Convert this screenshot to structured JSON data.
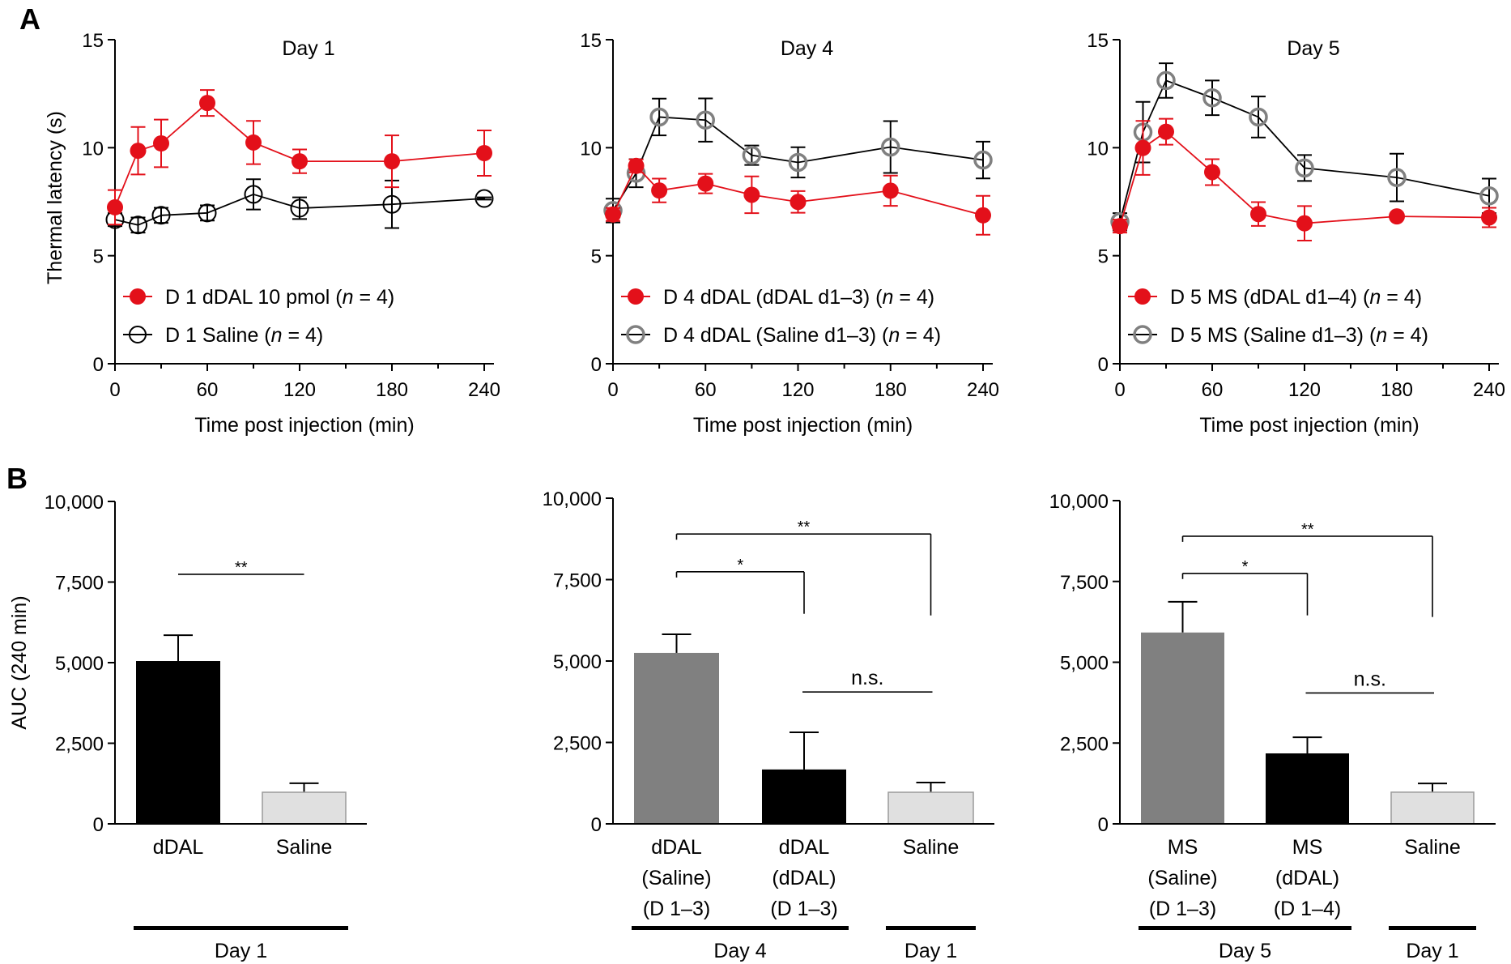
{
  "panel_labels": {
    "a": "A",
    "b": "B"
  },
  "colors": {
    "red": "#e3101a",
    "gray_marker": "#808080",
    "black": "#000000",
    "bar_gray": "#808080",
    "bar_black": "#000000",
    "bar_light": "#e0e0e0",
    "bar_light_edge": "#9a9a9a"
  },
  "chart_data": [
    {
      "type": "line",
      "panel": "A",
      "title": "Day 1",
      "xlabel": "Time post injection (min)",
      "ylabel": "Thermal latency (s)",
      "xlim": [
        0,
        240
      ],
      "ylim": [
        0,
        15
      ],
      "xticks": [
        0,
        60,
        120,
        180,
        240
      ],
      "xminor": [
        30,
        90,
        150,
        210
      ],
      "yticks": [
        0,
        5,
        10,
        15
      ],
      "legend_position": "bottom-left",
      "x": [
        0,
        15,
        30,
        60,
        90,
        120,
        180,
        240
      ],
      "series": [
        {
          "name": "D 1 dDAL 10 pmol",
          "n_label": "(n = 4)",
          "marker": "filled-circle",
          "color": "red",
          "values": [
            7.24,
            9.86,
            10.2,
            12.07,
            10.24,
            9.37,
            9.37,
            9.75
          ],
          "errors": [
            0.8,
            1.1,
            1.1,
            0.6,
            1.0,
            0.55,
            1.2,
            1.05
          ]
        },
        {
          "name": "D 1 Saline",
          "n_label": "(n = 4)",
          "marker": "open-circle-black",
          "color": "black",
          "values": [
            6.67,
            6.42,
            6.87,
            6.98,
            7.84,
            7.2,
            7.38,
            7.65
          ],
          "errors": [
            0.3,
            0.35,
            0.35,
            0.35,
            0.7,
            0.5,
            1.1,
            0.05
          ]
        }
      ]
    },
    {
      "type": "line",
      "panel": "A",
      "title": "Day 4",
      "xlabel": "Time post injection (min)",
      "ylabel": "",
      "xlim": [
        0,
        240
      ],
      "ylim": [
        0,
        15
      ],
      "xticks": [
        0,
        60,
        120,
        180,
        240
      ],
      "xminor": [
        30,
        90,
        150,
        210
      ],
      "yticks": [
        0,
        5,
        10,
        15
      ],
      "legend_position": "bottom-left",
      "x": [
        0,
        15,
        30,
        60,
        90,
        120,
        180,
        240
      ],
      "series": [
        {
          "name": "D 4 dDAL (dDAL d1–3)",
          "n_label": "(n = 4)",
          "marker": "filled-circle",
          "color": "red",
          "values": [
            6.91,
            9.16,
            8.02,
            8.34,
            7.82,
            7.49,
            8.01,
            6.87
          ],
          "errors": [
            0.3,
            0.3,
            0.55,
            0.45,
            0.85,
            0.5,
            0.7,
            0.9
          ]
        },
        {
          "name": "D 4 dDAL (Saline d1–3)",
          "n_label": "(n = 4)",
          "marker": "open-circle-gray",
          "color": "black",
          "values": [
            7.09,
            8.82,
            11.42,
            11.28,
            9.65,
            9.32,
            10.03,
            9.43
          ],
          "errors": [
            0.55,
            0.65,
            0.85,
            1.0,
            0.45,
            0.7,
            1.2,
            0.85
          ]
        }
      ]
    },
    {
      "type": "line",
      "panel": "A",
      "title": "Day 5",
      "xlabel": "Time post injection (min)",
      "ylabel": "",
      "xlim": [
        0,
        240
      ],
      "ylim": [
        0,
        15
      ],
      "xticks": [
        0,
        60,
        120,
        180,
        240
      ],
      "xminor": [
        30,
        90,
        150,
        210
      ],
      "yticks": [
        0,
        5,
        10,
        15
      ],
      "legend_position": "bottom-left",
      "x": [
        0,
        15,
        30,
        60,
        90,
        120,
        180,
        240
      ],
      "series": [
        {
          "name": "D 5 MS (dDAL d1–4)",
          "n_label": "(n = 4)",
          "marker": "filled-circle",
          "color": "red",
          "values": [
            6.37,
            9.99,
            10.74,
            8.87,
            6.93,
            6.5,
            6.82,
            6.77
          ],
          "errors": [
            0.3,
            1.25,
            0.6,
            0.6,
            0.55,
            0.8,
            0.1,
            0.45
          ]
        },
        {
          "name": "D 5 MS (Saline d1–3)",
          "n_label": "(n = 4)",
          "marker": "open-circle-gray",
          "color": "black",
          "values": [
            6.57,
            10.72,
            13.11,
            12.31,
            11.42,
            9.06,
            8.62,
            7.77
          ],
          "errors": [
            0.4,
            1.4,
            0.8,
            0.8,
            0.95,
            0.6,
            1.1,
            0.8
          ]
        }
      ]
    },
    {
      "type": "bar",
      "panel": "B",
      "title": "",
      "ylabel": "AUC (240 min)",
      "ylim": [
        0,
        10000
      ],
      "yticks": [
        0,
        2500,
        5000,
        7500,
        10000
      ],
      "ytick_labels": [
        "0",
        "2,500",
        "5,000",
        "7,500",
        "10,000"
      ],
      "categories": [
        [
          "dDAL"
        ],
        [
          "Saline"
        ]
      ],
      "values": [
        5050,
        980
      ],
      "errors": [
        800,
        280
      ],
      "fills": [
        "bar_black",
        "bar_light"
      ],
      "groups": [
        {
          "label": "Day 1",
          "from": 0,
          "to": 1
        }
      ],
      "significance": [
        {
          "label": "**",
          "from": 0,
          "to": 1,
          "style": "line",
          "level": 7740
        }
      ]
    },
    {
      "type": "bar",
      "panel": "B",
      "title": "",
      "ylabel": "",
      "ylim": [
        0,
        10000
      ],
      "yticks": [
        0,
        2500,
        5000,
        7500,
        10000
      ],
      "ytick_labels": [
        "0",
        "2,500",
        "5,000",
        "7,500",
        "10,000"
      ],
      "categories": [
        [
          "dDAL",
          "(Saline)",
          "(D 1–3)"
        ],
        [
          "dDAL",
          "(dDAL)",
          "(D 1–3)"
        ],
        [
          "Saline"
        ]
      ],
      "values": [
        5250,
        1670,
        970
      ],
      "errors": [
        570,
        1140,
        300
      ],
      "fills": [
        "bar_gray",
        "bar_black",
        "bar_light"
      ],
      "groups": [
        {
          "label": "Day 4",
          "from": 0,
          "to": 1
        },
        {
          "label": "Day 1",
          "from": 2,
          "to": 2
        }
      ],
      "significance": [
        {
          "label": "**",
          "from": 0,
          "to": 2,
          "style": "bracket",
          "level": 8900,
          "drop_to": 6400
        },
        {
          "label": "*",
          "from": 0,
          "to": 1,
          "style": "bracket",
          "level": 7740,
          "drop_to": 6450
        },
        {
          "label": "n.s.",
          "from": 1,
          "to": 2,
          "style": "line",
          "level": 4050
        }
      ]
    },
    {
      "type": "bar",
      "panel": "B",
      "title": "",
      "ylabel": "",
      "ylim": [
        0,
        10000
      ],
      "yticks": [
        0,
        2500,
        5000,
        7500,
        10000
      ],
      "ytick_labels": [
        "0",
        "2,500",
        "5,000",
        "7,500",
        "10,000"
      ],
      "categories": [
        [
          "MS",
          "(Saline)",
          "(D 1–3)"
        ],
        [
          "MS",
          "(dDAL)",
          "(D 1–4)"
        ],
        [
          "Saline"
        ]
      ],
      "values": [
        5920,
        2180,
        980
      ],
      "errors": [
        950,
        500,
        270
      ],
      "fills": [
        "bar_gray",
        "bar_black",
        "bar_light"
      ],
      "groups": [
        {
          "label": "Day 5",
          "from": 0,
          "to": 1
        },
        {
          "label": "Day 1",
          "from": 2,
          "to": 2
        }
      ],
      "significance": [
        {
          "label": "**",
          "from": 0,
          "to": 2,
          "style": "bracket",
          "level": 8900,
          "drop_to": 6400
        },
        {
          "label": "*",
          "from": 0,
          "to": 1,
          "style": "bracket",
          "level": 7750,
          "drop_to": 6450
        },
        {
          "label": "n.s.",
          "from": 1,
          "to": 2,
          "style": "line",
          "level": 4050
        }
      ]
    }
  ]
}
